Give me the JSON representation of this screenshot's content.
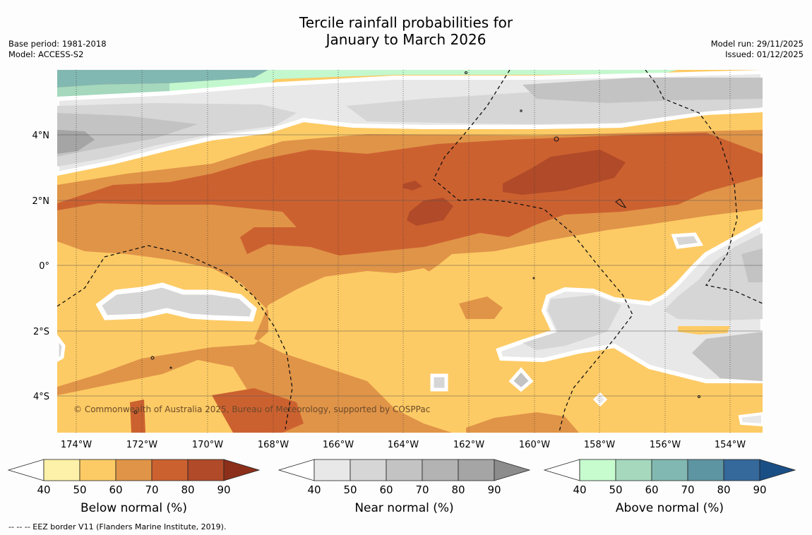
{
  "title": {
    "line1": "Tercile rainfall probabilities for",
    "line2": "January to March 2026"
  },
  "meta_left": {
    "base_period": "Base period: 1981-2018",
    "model": "Model: ACCESS-S2"
  },
  "meta_right": {
    "model_run": "Model run: 29/11/2025",
    "issued": "Issued: 01/12/2025"
  },
  "map": {
    "copyright": "© Commonwealth of Australia 2025, Bureau of Meteorology, supported by COSPPac",
    "x_ticks": [
      "174°W",
      "172°W",
      "170°W",
      "168°W",
      "166°W",
      "164°W",
      "162°W",
      "160°W",
      "158°W",
      "156°W",
      "154°W"
    ],
    "y_ticks": [
      "4°N",
      "2°N",
      "0°",
      "2°S",
      "4°S"
    ],
    "lon_range": [
      -174.6,
      -153.0
    ],
    "lat_range": [
      -5.0,
      6.0
    ]
  },
  "colorbars": [
    {
      "title": "Below normal (%)",
      "ticks": [
        "40",
        "50",
        "60",
        "70",
        "80",
        "90"
      ],
      "colors": [
        "#fdf0a8",
        "#fdcb65",
        "#e09448",
        "#cc6130",
        "#b04a28",
        "#8c2f1a"
      ]
    },
    {
      "title": "Near normal (%)",
      "ticks": [
        "40",
        "50",
        "60",
        "70",
        "80",
        "90"
      ],
      "colors": [
        "#e8e8e8",
        "#d6d6d6",
        "#c3c3c3",
        "#b3b3b3",
        "#a5a5a5",
        "#8c8c8c"
      ]
    },
    {
      "title": "Above normal (%)",
      "ticks": [
        "40",
        "50",
        "60",
        "70",
        "80",
        "90"
      ],
      "colors": [
        "#c7fccf",
        "#a5d8bd",
        "#82b8b2",
        "#5e95a2",
        "#35689b",
        "#1a4f86"
      ]
    }
  ],
  "footnote": "-- -- -- EEZ border V11 (Flanders Marine Institute, 2019)."
}
